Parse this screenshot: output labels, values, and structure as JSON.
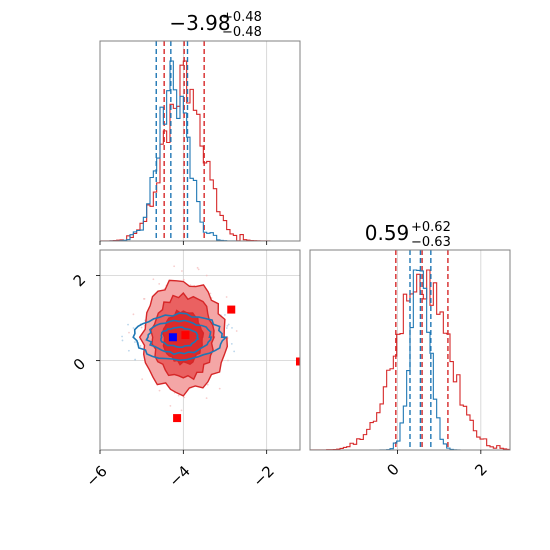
{
  "colors": {
    "red": "#d62728",
    "blue": "#1f77b4",
    "red_fill_outer": "#f4a6a6",
    "red_fill_mid": "#ea6161",
    "red_fill_inner": "#dd2a2a",
    "marker_red": "#ff0000",
    "marker_blue": "#0000ff",
    "grid": "#d0d0d0",
    "spine": "#808080"
  },
  "titles": {
    "param1": {
      "value": "−3.98",
      "upper": "+0.48",
      "lower": "−0.48"
    },
    "param2": {
      "value": "0.59",
      "upper": "+0.62",
      "lower": "−0.63"
    }
  },
  "ticks": {
    "x1": [
      "−6",
      "−4",
      "−2"
    ],
    "y1": [
      "2",
      "0"
    ],
    "x2": [
      "0",
      "2"
    ]
  },
  "chart_data": [
    {
      "type": "histogram",
      "panel": "marginal-param1",
      "xlim": [
        -6,
        -1.2
      ],
      "grid": true,
      "series": [
        {
          "color": "red",
          "mean": -3.98,
          "sd": 0.48,
          "quantiles": [
            -4.46,
            -3.98,
            -3.5
          ]
        },
        {
          "color": "blue",
          "mean": -4.25,
          "sd": 0.35,
          "quantiles": [
            -4.65,
            -4.3,
            -3.9
          ]
        }
      ]
    },
    {
      "type": "contour",
      "panel": "joint",
      "xlim": [
        -6,
        -1.2
      ],
      "ylim": [
        -2.1,
        2.6
      ],
      "grid": true,
      "series": [
        {
          "color": "red",
          "center": [
            -4.0,
            0.55
          ],
          "spread": [
            0.48,
            0.62
          ]
        },
        {
          "color": "blue",
          "center": [
            -4.1,
            0.55
          ],
          "spread": [
            0.55,
            0.28
          ]
        }
      ],
      "markers": [
        {
          "color": "red",
          "x": -2.85,
          "y": 1.2
        },
        {
          "color": "red",
          "x": -1.2,
          "y": -0.02
        },
        {
          "color": "red",
          "x": -4.15,
          "y": -1.35
        },
        {
          "color": "red",
          "x": -3.95,
          "y": 0.6
        },
        {
          "color": "blue",
          "x": -4.25,
          "y": 0.55
        }
      ]
    },
    {
      "type": "histogram",
      "panel": "marginal-param2",
      "xlim": [
        -2.1,
        2.7
      ],
      "grid": true,
      "series": [
        {
          "color": "red",
          "mean": 0.59,
          "sd": 0.62,
          "quantiles": [
            -0.04,
            0.59,
            1.21
          ]
        },
        {
          "color": "blue",
          "mean": 0.55,
          "sd": 0.22,
          "quantiles": [
            0.3,
            0.55,
            0.8
          ]
        }
      ]
    }
  ]
}
